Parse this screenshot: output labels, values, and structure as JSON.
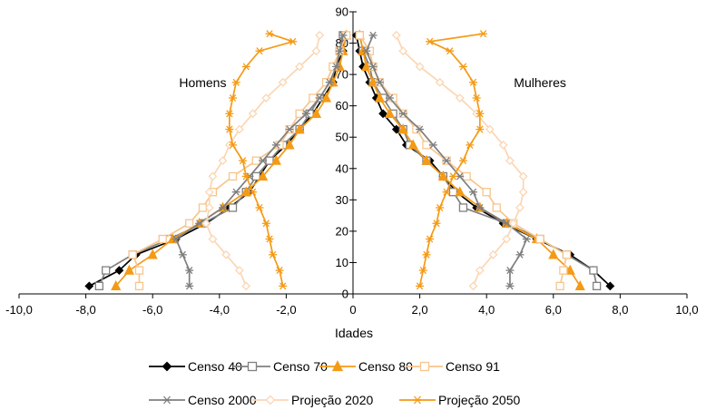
{
  "chart_data": {
    "type": "line",
    "title": "",
    "xlabel": "Idades",
    "ylabel": "",
    "xlim": [
      -10,
      10
    ],
    "ylim": [
      0,
      90
    ],
    "x_ticks": [
      -10,
      -8,
      -6,
      -4,
      -2,
      0,
      2,
      4,
      6,
      8,
      10
    ],
    "x_tick_labels": [
      "-10,0",
      "-8,0",
      "-6,0",
      "-4,0",
      "-2,0",
      "0",
      "2,0",
      "4,0",
      "6,0",
      "8,0",
      "10,0"
    ],
    "y_ticks": [
      0,
      10,
      20,
      30,
      40,
      50,
      60,
      70,
      80,
      90
    ],
    "y_tick_labels": [
      "0",
      "10",
      "20",
      "30",
      "40",
      "50",
      "60",
      "70",
      "80",
      "90"
    ],
    "ages": [
      2.5,
      7.5,
      12.5,
      17.5,
      22.5,
      27.5,
      32.5,
      37.5,
      42.5,
      47.5,
      52.5,
      57.5,
      62.5,
      67.5,
      72.5,
      77.5,
      82.5
    ],
    "annotations": [
      {
        "text": "Homens",
        "x": -4.5,
        "y": 66
      },
      {
        "text": "Mulheres",
        "x": 5.6,
        "y": 66
      }
    ],
    "legend_placement": "bottom",
    "grid": false,
    "series": [
      {
        "name": "Censo 40",
        "color": "#000000",
        "marker": "diamond",
        "filled": true,
        "men": [
          -7.9,
          -7.0,
          -6.5,
          -5.3,
          -4.4,
          -3.7,
          -3.1,
          -2.8,
          -2.5,
          -2.0,
          -1.6,
          -1.2,
          -0.9,
          -0.6,
          -0.5,
          -0.3,
          -0.2
        ],
        "women": [
          7.7,
          7.2,
          6.5,
          5.5,
          4.5,
          3.7,
          3.1,
          2.7,
          2.3,
          1.6,
          1.3,
          0.9,
          0.7,
          0.5,
          0.3,
          0.2,
          0.1
        ]
      },
      {
        "name": "Censo 70",
        "color": "#808080",
        "marker": "square",
        "filled": false,
        "men": [
          -7.6,
          -7.4,
          -6.6,
          -5.5,
          -4.5,
          -3.6,
          -3.2,
          -2.9,
          -2.5,
          -2.1,
          -1.6,
          -1.3,
          -1.0,
          -0.7,
          -0.5,
          -0.4,
          -0.3
        ],
        "women": [
          7.3,
          7.2,
          6.4,
          5.6,
          4.6,
          3.3,
          3.0,
          2.7,
          2.2,
          1.7,
          1.5,
          1.2,
          0.9,
          0.6,
          0.5,
          0.3,
          0.2
        ]
      },
      {
        "name": "Censo 80",
        "color": "#F59A14",
        "marker": "triangle",
        "filled": true,
        "men": [
          -7.1,
          -6.7,
          -6.0,
          -5.4,
          -4.6,
          -3.9,
          -3.2,
          -2.7,
          -2.3,
          -1.9,
          -1.6,
          -1.1,
          -0.8,
          -0.6,
          -0.4,
          -0.3,
          -0.2
        ],
        "women": [
          6.8,
          6.5,
          6.0,
          5.5,
          4.6,
          3.8,
          3.2,
          2.7,
          2.2,
          1.8,
          1.5,
          1.1,
          0.8,
          0.6,
          0.4,
          0.3,
          0.2
        ]
      },
      {
        "name": "Censo 91",
        "color": "#F8C58C",
        "marker": "square",
        "filled": false,
        "men": [
          -6.4,
          -6.4,
          -6.6,
          -5.7,
          -4.9,
          -4.5,
          -4.2,
          -3.6,
          -2.9,
          -2.2,
          -1.9,
          -1.6,
          -1.2,
          -0.8,
          -0.6,
          -0.4,
          -0.2
        ],
        "women": [
          6.2,
          6.3,
          6.4,
          5.6,
          4.8,
          4.3,
          4.0,
          3.4,
          2.8,
          2.2,
          1.9,
          1.5,
          1.2,
          0.8,
          0.6,
          0.5,
          0.2
        ]
      },
      {
        "name": "Censo 2000",
        "color": "#7F7F7F",
        "marker": "star",
        "filled": true,
        "men": [
          -4.9,
          -4.9,
          -5.1,
          -5.3,
          -4.6,
          -3.9,
          -3.5,
          -3.1,
          -2.7,
          -2.3,
          -1.9,
          -1.4,
          -1.0,
          -0.7,
          -0.5,
          -0.4,
          -0.3
        ],
        "women": [
          4.7,
          4.7,
          5.0,
          5.2,
          4.6,
          3.8,
          3.6,
          3.2,
          2.8,
          2.4,
          2.0,
          1.5,
          1.1,
          0.8,
          0.6,
          0.4,
          0.6
        ]
      },
      {
        "name": "Projeção 2020",
        "color": "#FBD6B3",
        "marker": "diamond",
        "filled": false,
        "men": [
          -3.2,
          -3.4,
          -3.8,
          -4.2,
          -4.4,
          -4.3,
          -4.3,
          -4.2,
          -3.9,
          -3.7,
          -3.4,
          -3.0,
          -2.6,
          -2.1,
          -1.6,
          -1.1,
          -1.0
        ],
        "women": [
          3.6,
          3.8,
          4.2,
          4.6,
          4.8,
          5.0,
          5.1,
          5.1,
          4.7,
          4.5,
          4.1,
          3.7,
          3.2,
          2.6,
          2.0,
          1.5,
          1.3
        ]
      },
      {
        "name": "Projeção 2050",
        "color": "#F59A14",
        "marker": "star",
        "filled": true,
        "men": [
          -2.1,
          -2.2,
          -2.4,
          -2.5,
          -2.6,
          -2.8,
          -3.0,
          -3.2,
          -3.3,
          -3.6,
          -3.7,
          -3.7,
          -3.6,
          -3.5,
          -3.2,
          -2.8,
          -1.8,
          -2.5
        ],
        "women": [
          2.0,
          2.1,
          2.2,
          2.3,
          2.5,
          2.6,
          2.8,
          3.0,
          3.3,
          3.5,
          3.8,
          3.8,
          3.7,
          3.6,
          3.3,
          2.9,
          2.3,
          3.9
        ],
        "ages_override": [
          2.5,
          7.5,
          12.5,
          17.5,
          22.5,
          27.5,
          32.5,
          37.5,
          42.5,
          47.5,
          52.5,
          57.5,
          62.5,
          67.5,
          72.5,
          77.5,
          80.5,
          83.0
        ]
      }
    ]
  }
}
